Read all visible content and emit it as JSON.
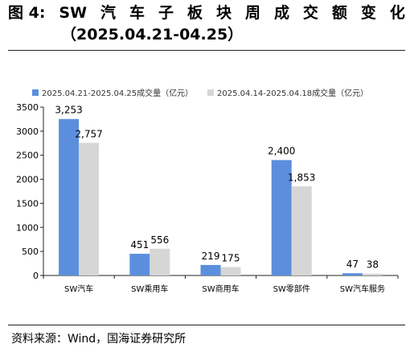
{
  "figure": {
    "label": "图 4:",
    "title_words": [
      "SW",
      "汽",
      "车",
      "子",
      "板",
      "块",
      "周",
      "成",
      "交",
      "额",
      "变",
      "化"
    ],
    "subtitle": "（2025.04.21-04.25）",
    "source": "资料来源：Wind，国海证券研究所"
  },
  "chart_data": {
    "type": "bar",
    "categories": [
      "SW汽车",
      "SW乘用车",
      "SW商用车",
      "SW零部件",
      "SW汽车服务"
    ],
    "series": [
      {
        "name": "2025.04.21-2025.04.25成交量（亿元）",
        "values": [
          3253,
          451,
          219,
          2400,
          47
        ],
        "labels": [
          "3,253",
          "451",
          "219",
          "2,400",
          "47"
        ]
      },
      {
        "name": "2025.04.14-2025.04.18成交量（亿元）",
        "values": [
          2757,
          556,
          175,
          1853,
          38
        ],
        "labels": [
          "2,757",
          "556",
          "175",
          "1,853",
          "38"
        ]
      }
    ],
    "colors": [
      "#5b8fde",
      "#d6d6d6"
    ],
    "ylim": [
      0,
      3500
    ],
    "yticks": [
      0,
      500,
      1000,
      1500,
      2000,
      2500,
      3000,
      3500
    ],
    "grid": false,
    "legend": "top-left"
  }
}
